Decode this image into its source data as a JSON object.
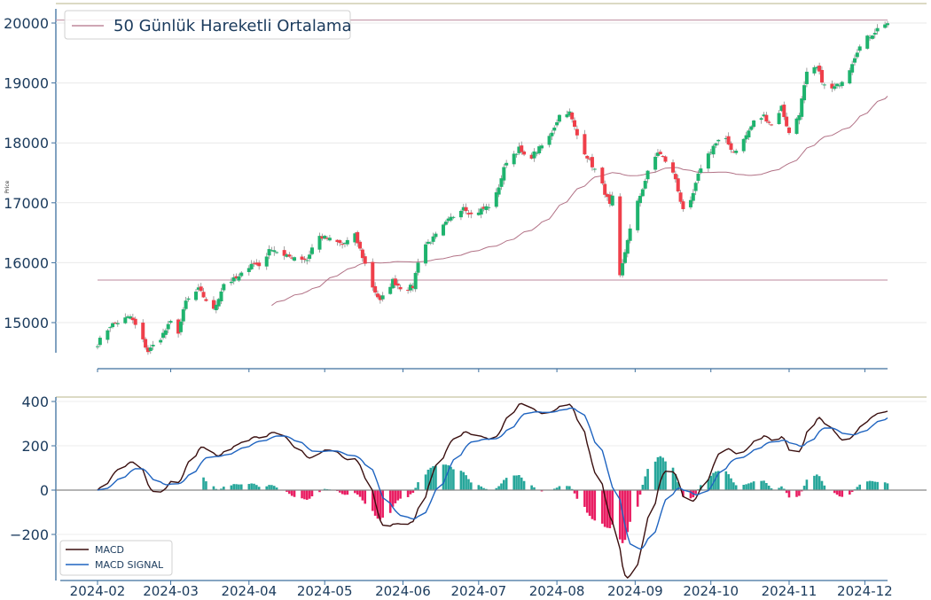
{
  "chart_data": [
    {
      "type": "candlestick",
      "ylabel": "Price",
      "ylim": [
        14450,
        20150
      ],
      "yticks": [
        15000,
        16000,
        17000,
        18000,
        19000,
        20000
      ],
      "legend": {
        "label": "50 Günlük Hareketli Ortalama",
        "position": "top-left"
      },
      "hlines": [
        20050,
        15710
      ],
      "colors": {
        "up": "#1fb36e",
        "down": "#ef3f4a",
        "ma": "#b27286",
        "hline": "#c9a0b0",
        "text": "#1a3a5c",
        "axis": "#3d6f9e"
      },
      "anchors": [
        [
          "2024-02-01",
          14650
        ],
        [
          "2024-02-06",
          14950
        ],
        [
          "2024-02-14",
          15100
        ],
        [
          "2024-02-16",
          14950
        ],
        [
          "2024-02-21",
          14520
        ],
        [
          "2024-02-26",
          14750
        ],
        [
          "2024-03-01",
          15000
        ],
        [
          "2024-03-04",
          14850
        ],
        [
          "2024-03-07",
          15350
        ],
        [
          "2024-03-12",
          15550
        ],
        [
          "2024-03-18",
          15200
        ],
        [
          "2024-03-22",
          15650
        ],
        [
          "2024-03-28",
          15750
        ],
        [
          "2024-04-02",
          16000
        ],
        [
          "2024-04-05",
          15950
        ],
        [
          "2024-04-10",
          16250
        ],
        [
          "2024-04-15",
          16100
        ],
        [
          "2024-04-19",
          16100
        ],
        [
          "2024-04-24",
          16050
        ],
        [
          "2024-04-28",
          16450
        ],
        [
          "2024-05-02",
          16400
        ],
        [
          "2024-05-08",
          16300
        ],
        [
          "2024-05-13",
          16450
        ],
        [
          "2024-05-16",
          16100
        ],
        [
          "2024-05-20",
          15600
        ],
        [
          "2024-05-23",
          15350
        ],
        [
          "2024-05-28",
          15700
        ],
        [
          "2024-06-01",
          15550
        ],
        [
          "2024-06-05",
          15600
        ],
        [
          "2024-06-08",
          16250
        ],
        [
          "2024-06-13",
          16400
        ],
        [
          "2024-06-19",
          16700
        ],
        [
          "2024-06-25",
          16950
        ],
        [
          "2024-06-28",
          16800
        ],
        [
          "2024-07-03",
          16900
        ],
        [
          "2024-07-07",
          17000
        ],
        [
          "2024-07-12",
          17700
        ],
        [
          "2024-07-17",
          17900
        ],
        [
          "2024-07-20",
          17700
        ],
        [
          "2024-07-25",
          17900
        ],
        [
          "2024-07-29",
          18100
        ],
        [
          "2024-08-03",
          18550
        ],
        [
          "2024-08-06",
          18500
        ],
        [
          "2024-08-10",
          18000
        ],
        [
          "2024-08-14",
          17700
        ],
        [
          "2024-08-18",
          17400
        ],
        [
          "2024-08-22",
          16950
        ],
        [
          "2024-08-24",
          17200
        ],
        [
          "2024-08-26",
          15750
        ],
        [
          "2024-08-29",
          16400
        ],
        [
          "2024-09-02",
          17000
        ],
        [
          "2024-09-06",
          17500
        ],
        [
          "2024-09-10",
          17850
        ],
        [
          "2024-09-14",
          17650
        ],
        [
          "2024-09-17",
          17400
        ],
        [
          "2024-09-20",
          16850
        ],
        [
          "2024-09-23",
          17000
        ],
        [
          "2024-09-27",
          17600
        ],
        [
          "2024-10-02",
          17950
        ],
        [
          "2024-10-06",
          18100
        ],
        [
          "2024-10-10",
          17850
        ],
        [
          "2024-10-14",
          18050
        ],
        [
          "2024-10-18",
          18350
        ],
        [
          "2024-10-22",
          18450
        ],
        [
          "2024-10-25",
          18300
        ],
        [
          "2024-10-29",
          18600
        ],
        [
          "2024-11-01",
          18150
        ],
        [
          "2024-11-05",
          18500
        ],
        [
          "2024-11-08",
          19150
        ],
        [
          "2024-11-12",
          19250
        ],
        [
          "2024-11-16",
          18850
        ],
        [
          "2024-11-20",
          18950
        ],
        [
          "2024-11-24",
          19150
        ],
        [
          "2024-11-28",
          19550
        ],
        [
          "2024-12-02",
          19750
        ],
        [
          "2024-12-06",
          19900
        ],
        [
          "2024-12-09",
          20000
        ]
      ]
    },
    {
      "type": "line+bar",
      "ylim": [
        -380,
        410
      ],
      "yticks": [
        -200,
        0,
        200,
        400
      ],
      "x_ticks": [
        "2024-02",
        "2024-03",
        "2024-04",
        "2024-05",
        "2024-06",
        "2024-07",
        "2024-08",
        "2024-09",
        "2024-10",
        "2024-11",
        "2024-12"
      ],
      "legend": {
        "position": "lower-left"
      },
      "series": [
        {
          "name": "MACD",
          "color": "#3a0f0f"
        },
        {
          "name": "MACD SIGNAL",
          "color": "#1f64c0"
        }
      ],
      "colors": {
        "hist_pos": "#26a69a",
        "hist_neg": "#e91e63",
        "zero": "#888888"
      }
    }
  ]
}
